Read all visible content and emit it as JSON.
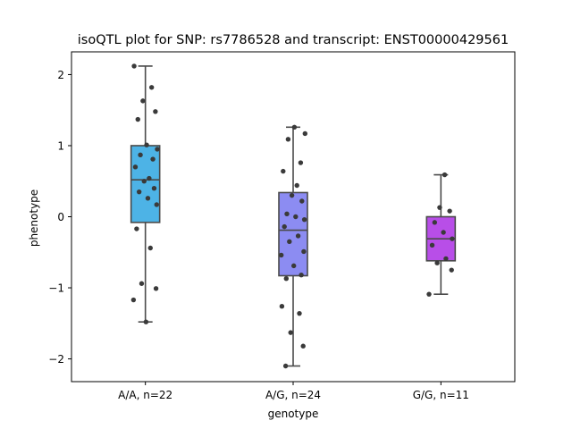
{
  "chart_data": {
    "type": "box",
    "title": "isoQTL plot for SNP: rs7786528 and transcript: ENST00000429561",
    "xlabel": "genotype",
    "ylabel": "phenotype",
    "ylim": [
      -2.32,
      2.32
    ],
    "yticks": [
      -2,
      -1,
      0,
      1,
      2
    ],
    "ytick_labels": [
      "−2",
      "−1",
      "0",
      "1",
      "2"
    ],
    "grid": false,
    "categories": [
      "A/A, n=22",
      "A/G, n=24",
      "G/G, n=11"
    ],
    "colors": [
      "#4db3e6",
      "#8c8cf2",
      "#b84ee8"
    ],
    "boxes": [
      {
        "whisker_low": -1.48,
        "q1": -0.08,
        "median": 0.52,
        "q3": 1.0,
        "whisker_high": 2.12
      },
      {
        "whisker_low": -2.1,
        "q1": -0.83,
        "median": -0.19,
        "q3": 0.34,
        "whisker_high": 1.26
      },
      {
        "whisker_low": -1.09,
        "q1": -0.62,
        "median": -0.31,
        "q3": 0.0,
        "whisker_high": 0.59
      }
    ],
    "points": [
      [
        2.12,
        1.82,
        1.63,
        1.48,
        1.37,
        1.01,
        0.95,
        0.87,
        0.81,
        0.7,
        0.54,
        0.5,
        0.4,
        0.35,
        0.26,
        0.17,
        -0.17,
        -0.44,
        -0.94,
        -1.01,
        -1.17,
        -1.48
      ],
      [
        1.26,
        1.17,
        1.09,
        0.76,
        0.64,
        0.44,
        0.3,
        0.22,
        0.04,
        0.0,
        -0.04,
        -0.14,
        -0.27,
        -0.35,
        -0.49,
        -0.54,
        -0.69,
        -0.82,
        -0.87,
        -1.26,
        -1.36,
        -1.63,
        -1.82,
        -2.1
      ],
      [
        0.59,
        0.13,
        0.08,
        -0.08,
        -0.22,
        -0.31,
        -0.4,
        -0.59,
        -0.65,
        -0.75,
        -1.09
      ]
    ]
  }
}
